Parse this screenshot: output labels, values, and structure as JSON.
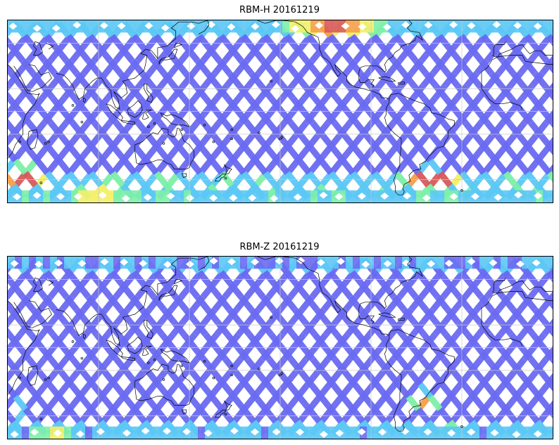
{
  "panels": [
    {
      "title": "RBM-H 20161219",
      "field": "hot"
    },
    {
      "title": "RBM-Z 20161219",
      "field": "cool"
    }
  ],
  "colors": {
    "blue": "#6a6af2",
    "cyan": "#5bc8f5",
    "green": "#7df0a8",
    "yellow": "#f3f06a",
    "orange": "#f5a04a",
    "red": "#d85a5a",
    "coast": "#000000",
    "grid": "#c8c8c8"
  },
  "map": {
    "projection": "equirectangular",
    "lon_range": [
      30,
      390
    ],
    "lat_range": [
      -60,
      60
    ],
    "grid": true
  }
}
